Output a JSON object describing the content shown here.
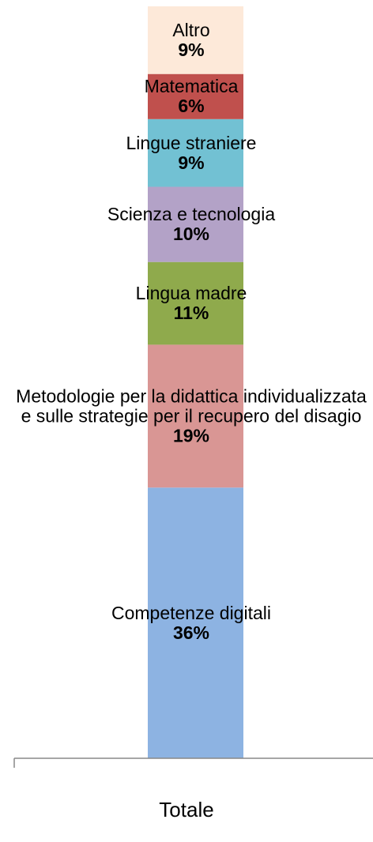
{
  "chart_data": {
    "type": "bar",
    "stacked": true,
    "categories": [
      "Totale"
    ],
    "ylim": [
      0,
      100
    ],
    "series": [
      {
        "name": "Competenze digitali",
        "color": "#8db3e2",
        "values": [
          36
        ],
        "value_labels": [
          "36%"
        ]
      },
      {
        "name": "Metodologie per la didattica individualizzata e sulle strategie per il recupero del disagio",
        "color": "#d99694",
        "values": [
          19
        ],
        "value_labels": [
          "19%"
        ]
      },
      {
        "name": "Lingua madre",
        "color": "#8faa4c",
        "values": [
          11
        ],
        "value_labels": [
          "11%"
        ]
      },
      {
        "name": "Scienza e tecnologia",
        "color": "#b3a2c7",
        "values": [
          10
        ],
        "value_labels": [
          "10%"
        ]
      },
      {
        "name": "Lingue straniere",
        "color": "#72c1d3",
        "values": [
          9
        ],
        "value_labels": [
          "9%"
        ]
      },
      {
        "name": "Matematica",
        "color": "#c0504d",
        "values": [
          6
        ],
        "value_labels": [
          "6%"
        ]
      },
      {
        "name": "Altro",
        "color": "#fde9d9",
        "values": [
          9
        ],
        "value_labels": [
          "9%"
        ]
      }
    ]
  }
}
